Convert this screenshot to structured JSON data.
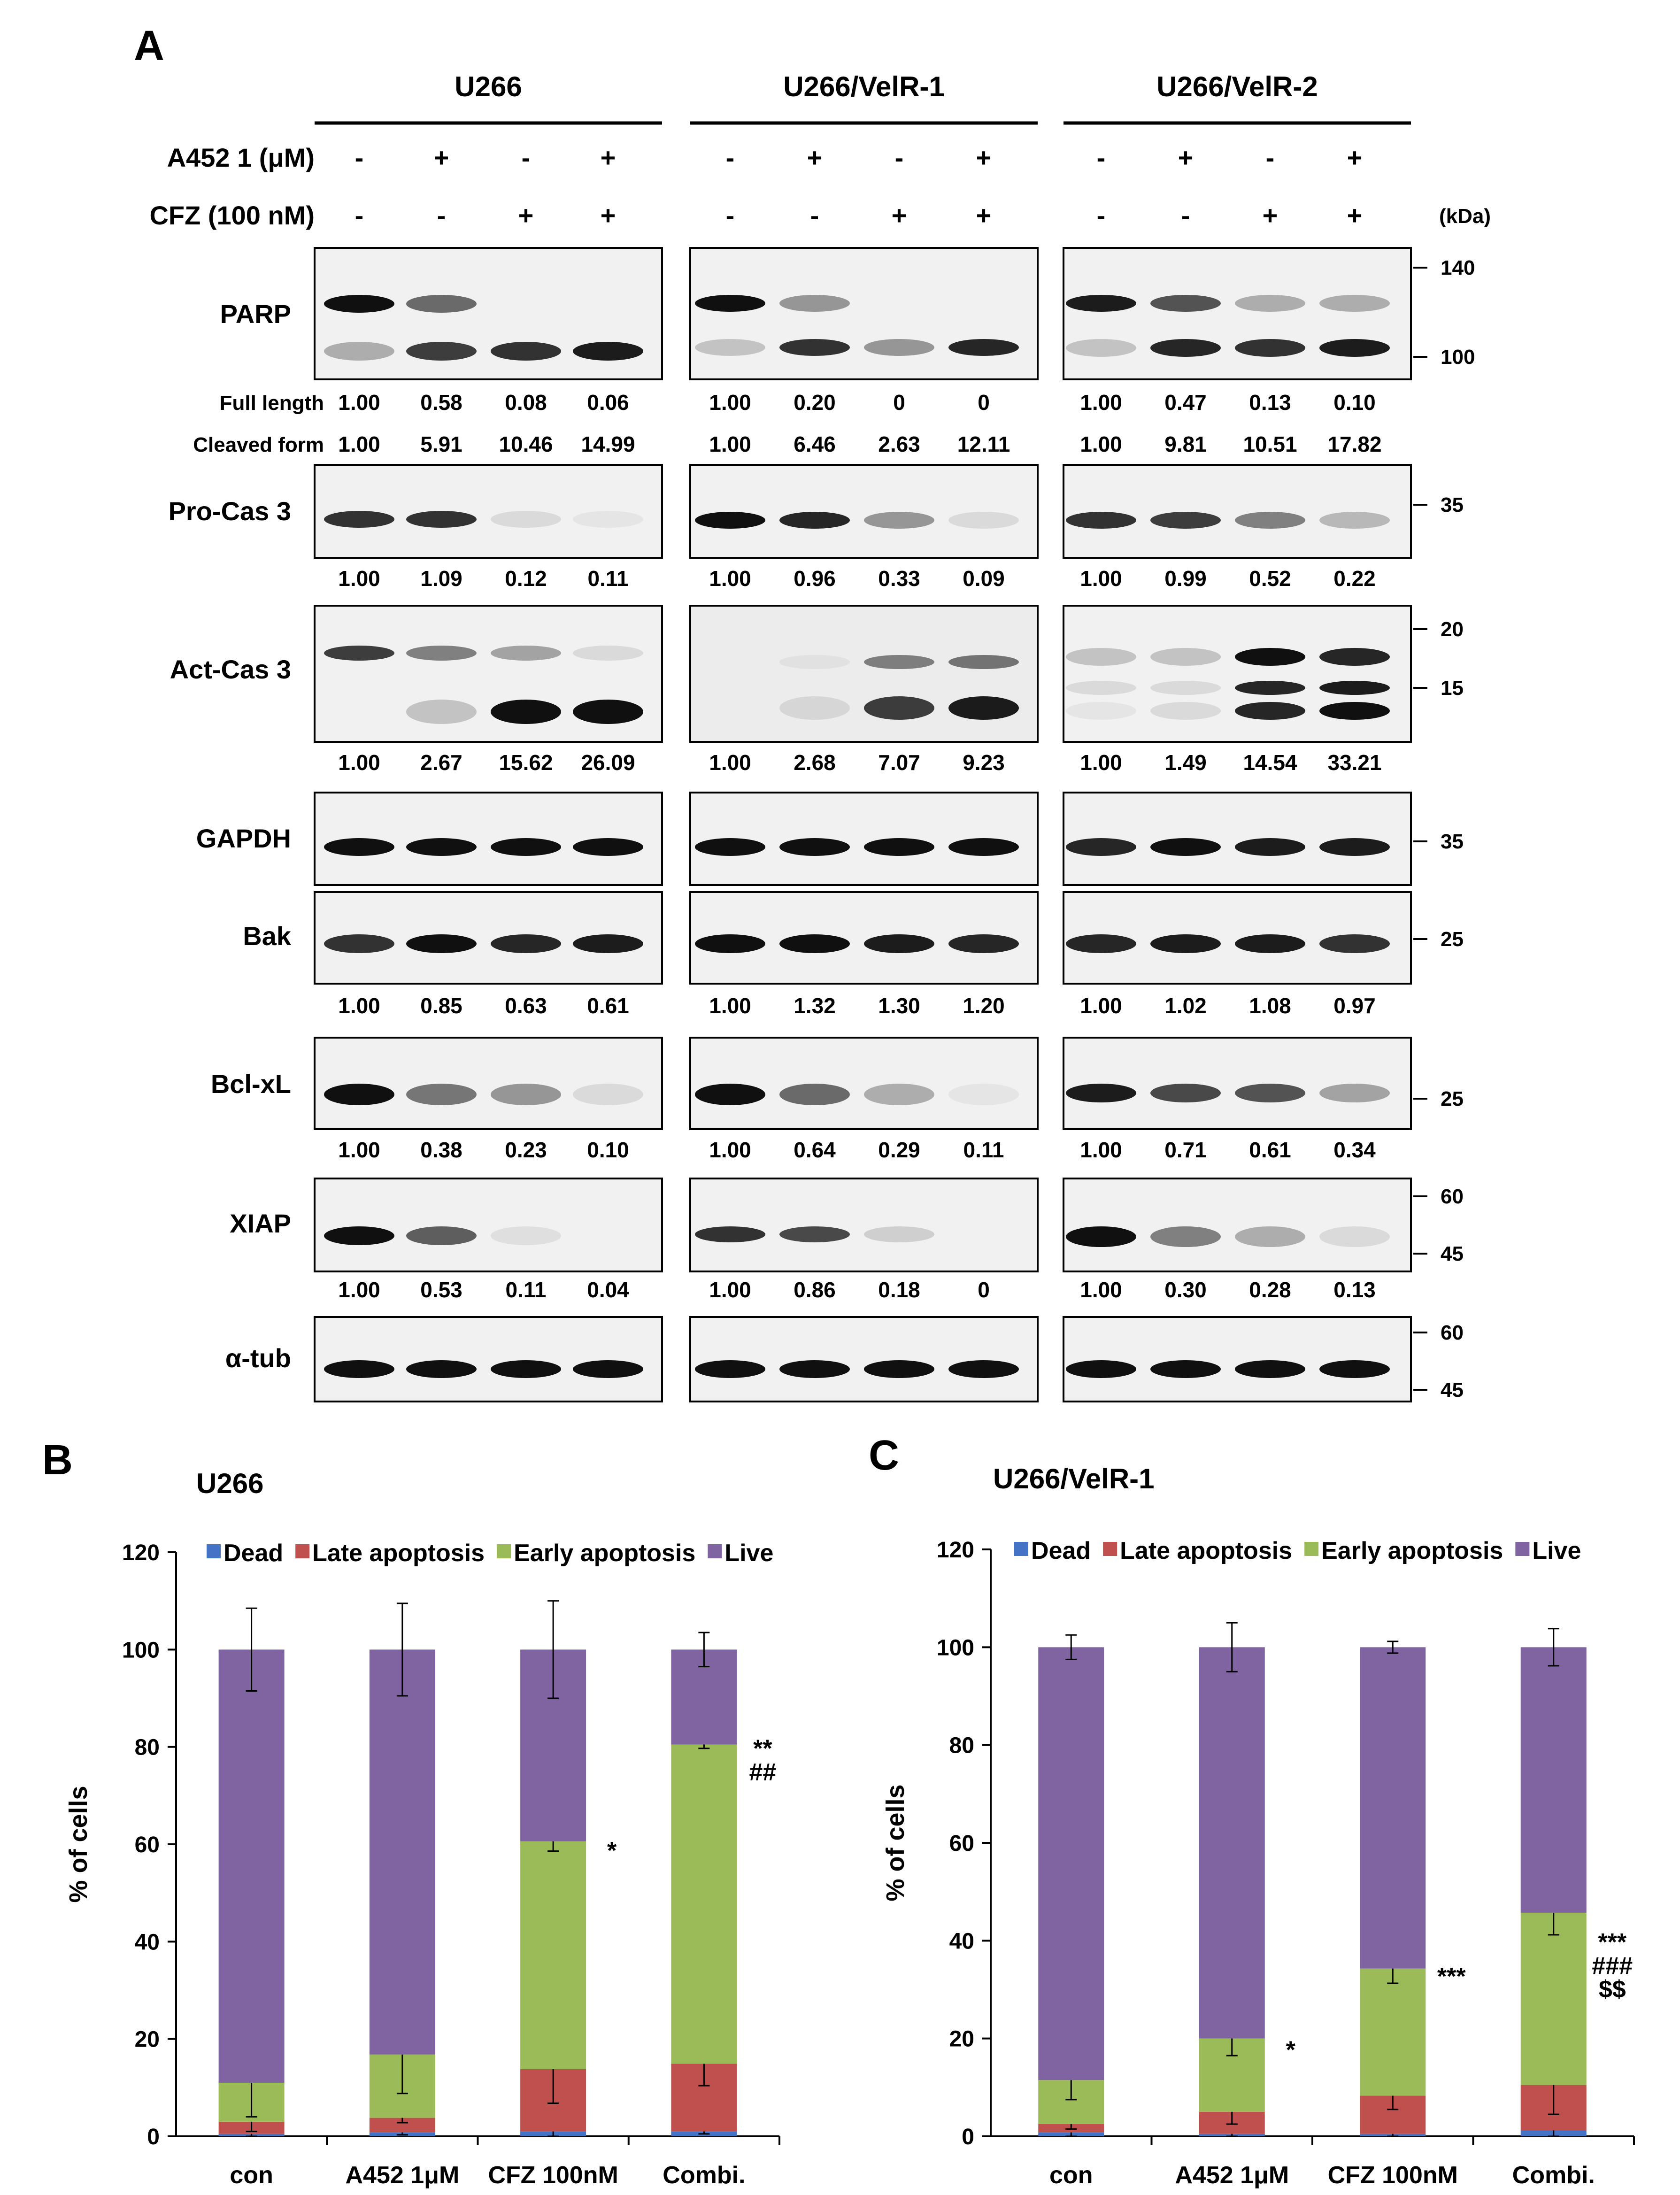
{
  "panel_a": {
    "letter": "A",
    "columns": [
      "U266",
      "U266/VelR-1",
      "U266/VelR-2"
    ],
    "conditions": [
      {
        "label": "A452 1 (μM)",
        "signs": [
          "-",
          "+",
          "-",
          "+"
        ]
      },
      {
        "label": "CFZ (100 nM)",
        "signs": [
          "-",
          "-",
          "+",
          "+"
        ]
      }
    ],
    "kda_label": "(kDa)",
    "blots": [
      {
        "name": "PARP",
        "mw": [
          "140",
          "100"
        ],
        "quant_rows": [
          {
            "label": "Full length",
            "values": [
              [
                "1.00",
                "0.58",
                "0.08",
                "0.06"
              ],
              [
                "1.00",
                "0.20",
                "0",
                "0"
              ],
              [
                "1.00",
                "0.47",
                "0.13",
                "0.10"
              ]
            ]
          },
          {
            "label": "Cleaved form",
            "values": [
              [
                "1.00",
                "5.91",
                "10.46",
                "14.99"
              ],
              [
                "1.00",
                "6.46",
                "2.63",
                "12.11"
              ],
              [
                "1.00",
                "9.81",
                "10.51",
                "17.82"
              ]
            ]
          }
        ]
      },
      {
        "name": "Pro-Cas 3",
        "mw": [
          "35"
        ],
        "quant_rows": [
          {
            "label": "",
            "values": [
              [
                "1.00",
                "1.09",
                "0.12",
                "0.11"
              ],
              [
                "1.00",
                "0.96",
                "0.33",
                "0.09"
              ],
              [
                "1.00",
                "0.99",
                "0.52",
                "0.22"
              ]
            ]
          }
        ]
      },
      {
        "name": "Act-Cas 3",
        "mw": [
          "20",
          "15"
        ],
        "quant_rows": [
          {
            "label": "",
            "values": [
              [
                "1.00",
                "2.67",
                "15.62",
                "26.09"
              ],
              [
                "1.00",
                "2.68",
                "7.07",
                "9.23"
              ],
              [
                "1.00",
                "1.49",
                "14.54",
                "33.21"
              ]
            ]
          }
        ]
      },
      {
        "name": "GAPDH",
        "mw": [
          "35"
        ],
        "quant_rows": []
      },
      {
        "name": "Bak",
        "mw": [
          "25"
        ],
        "quant_rows": [
          {
            "label": "",
            "values": [
              [
                "1.00",
                "0.85",
                "0.63",
                "0.61"
              ],
              [
                "1.00",
                "1.32",
                "1.30",
                "1.20"
              ],
              [
                "1.00",
                "1.02",
                "1.08",
                "0.97"
              ]
            ]
          }
        ]
      },
      {
        "name": "Bcl-xL",
        "mw": [
          "25"
        ],
        "quant_rows": [
          {
            "label": "",
            "values": [
              [
                "1.00",
                "0.38",
                "0.23",
                "0.10"
              ],
              [
                "1.00",
                "0.64",
                "0.29",
                "0.11"
              ],
              [
                "1.00",
                "0.71",
                "0.61",
                "0.34"
              ]
            ]
          }
        ]
      },
      {
        "name": "XIAP",
        "mw": [
          "60",
          "45"
        ],
        "quant_rows": [
          {
            "label": "",
            "values": [
              [
                "1.00",
                "0.53",
                "0.11",
                "0.04"
              ],
              [
                "1.00",
                "0.86",
                "0.18",
                "0"
              ],
              [
                "1.00",
                "0.30",
                "0.28",
                "0.13"
              ]
            ]
          }
        ]
      },
      {
        "name": "α-tub",
        "mw": [
          "60",
          "45"
        ],
        "quant_rows": []
      }
    ]
  },
  "colors": {
    "dead": "#4472c4",
    "late": "#c0504d",
    "early": "#9bbb59",
    "live": "#8064a2"
  },
  "chart_data": [
    {
      "letter": "B",
      "type": "bar",
      "stacked": true,
      "title": "U266",
      "ylabel": "% of cells",
      "ylim": [
        0,
        120
      ],
      "yticks": [
        0,
        20,
        40,
        60,
        80,
        100,
        120
      ],
      "legend_position": "top",
      "categories": [
        "con",
        "A452 1μM",
        "CFZ 100nM",
        "Combi."
      ],
      "series": [
        {
          "name": "Dead",
          "values": [
            0.5,
            0.8,
            1.0,
            1.0
          ],
          "errors": [
            0.5,
            0.5,
            1.5,
            0.5
          ]
        },
        {
          "name": "Late apoptosis",
          "values": [
            2.5,
            3.0,
            12.8,
            13.9
          ],
          "errors": [
            2.0,
            1.0,
            7.0,
            4.5
          ]
        },
        {
          "name": "Early apoptosis",
          "values": [
            8.0,
            13.0,
            46.8,
            65.6
          ],
          "errors": [
            7.0,
            8.0,
            2.0,
            0.8
          ]
        },
        {
          "name": "Live",
          "values": [
            89.0,
            83.2,
            39.4,
            19.5
          ],
          "errors": [
            8.5,
            9.5,
            10.0,
            3.5
          ]
        }
      ],
      "annotations": [
        {
          "category": "CFZ 100nM",
          "y": 57,
          "lines": [
            "*"
          ]
        },
        {
          "category": "Combi.",
          "y": 78,
          "lines": [
            "**",
            "##"
          ]
        }
      ]
    },
    {
      "letter": "C",
      "type": "bar",
      "stacked": true,
      "title": "U266/VelR-1",
      "ylabel": "% of cells",
      "ylim": [
        0,
        120
      ],
      "yticks": [
        0,
        20,
        40,
        60,
        80,
        100,
        120
      ],
      "legend_position": "top",
      "categories": [
        "con",
        "A452 1μM",
        "CFZ 100nM",
        "Combi."
      ],
      "series": [
        {
          "name": "Dead",
          "values": [
            0.8,
            0.5,
            0.5,
            1.2
          ],
          "errors": [
            1.0,
            0.5,
            2.0,
            3.0
          ]
        },
        {
          "name": "Late apoptosis",
          "values": [
            1.7,
            4.5,
            7.8,
            9.3
          ],
          "errors": [
            1.0,
            2.5,
            2.8,
            6.0
          ]
        },
        {
          "name": "Early apoptosis",
          "values": [
            9.0,
            15.0,
            26.0,
            35.2
          ],
          "errors": [
            4.0,
            3.5,
            3.0,
            4.5
          ]
        },
        {
          "name": "Live",
          "values": [
            88.5,
            80.0,
            65.7,
            54.3
          ],
          "errors": [
            2.5,
            5.0,
            1.2,
            3.8
          ]
        }
      ],
      "annotations": [
        {
          "category": "A452 1μM",
          "y": 16,
          "lines": [
            "*"
          ]
        },
        {
          "category": "CFZ 100nM",
          "y": 31,
          "lines": [
            "***"
          ]
        },
        {
          "category": "Combi.",
          "y": 38,
          "lines": [
            "***",
            "###",
            "$$"
          ]
        }
      ]
    }
  ]
}
